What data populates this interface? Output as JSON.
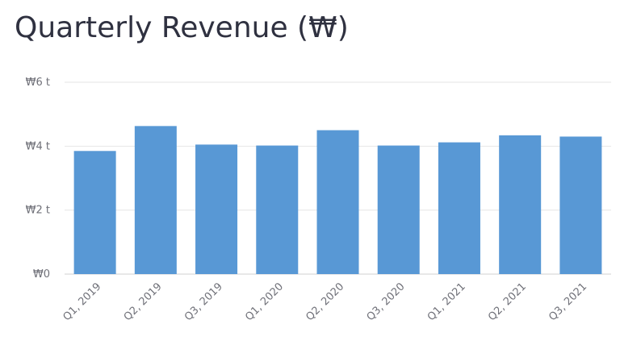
{
  "chart_data": {
    "type": "bar",
    "title": "Quarterly Revenue (₩)",
    "xlabel": "",
    "ylabel": "",
    "categories": [
      "Q1, 2019",
      "Q2, 2019",
      "Q3, 2019",
      "Q1, 2020",
      "Q2, 2020",
      "Q3, 2020",
      "Q1, 2021",
      "Q2, 2021",
      "Q3, 2021"
    ],
    "values": [
      3.85,
      4.63,
      4.05,
      4.02,
      4.5,
      4.02,
      4.12,
      4.34,
      4.3
    ],
    "value_unit": "trillion ₩",
    "ylim": [
      0,
      6
    ],
    "y_ticks": [
      {
        "value": 0,
        "label": "₩0"
      },
      {
        "value": 2,
        "label": "₩2 t"
      },
      {
        "value": 4,
        "label": "₩4 t"
      },
      {
        "value": 6,
        "label": "₩6 t"
      }
    ],
    "grid": true,
    "legend": "none",
    "colors": {
      "bar": "#5898d5",
      "grid": "#e6e6e6",
      "axis": "#d0d0d0",
      "title": "#2f3140",
      "tick_label": "#6f7078"
    }
  }
}
